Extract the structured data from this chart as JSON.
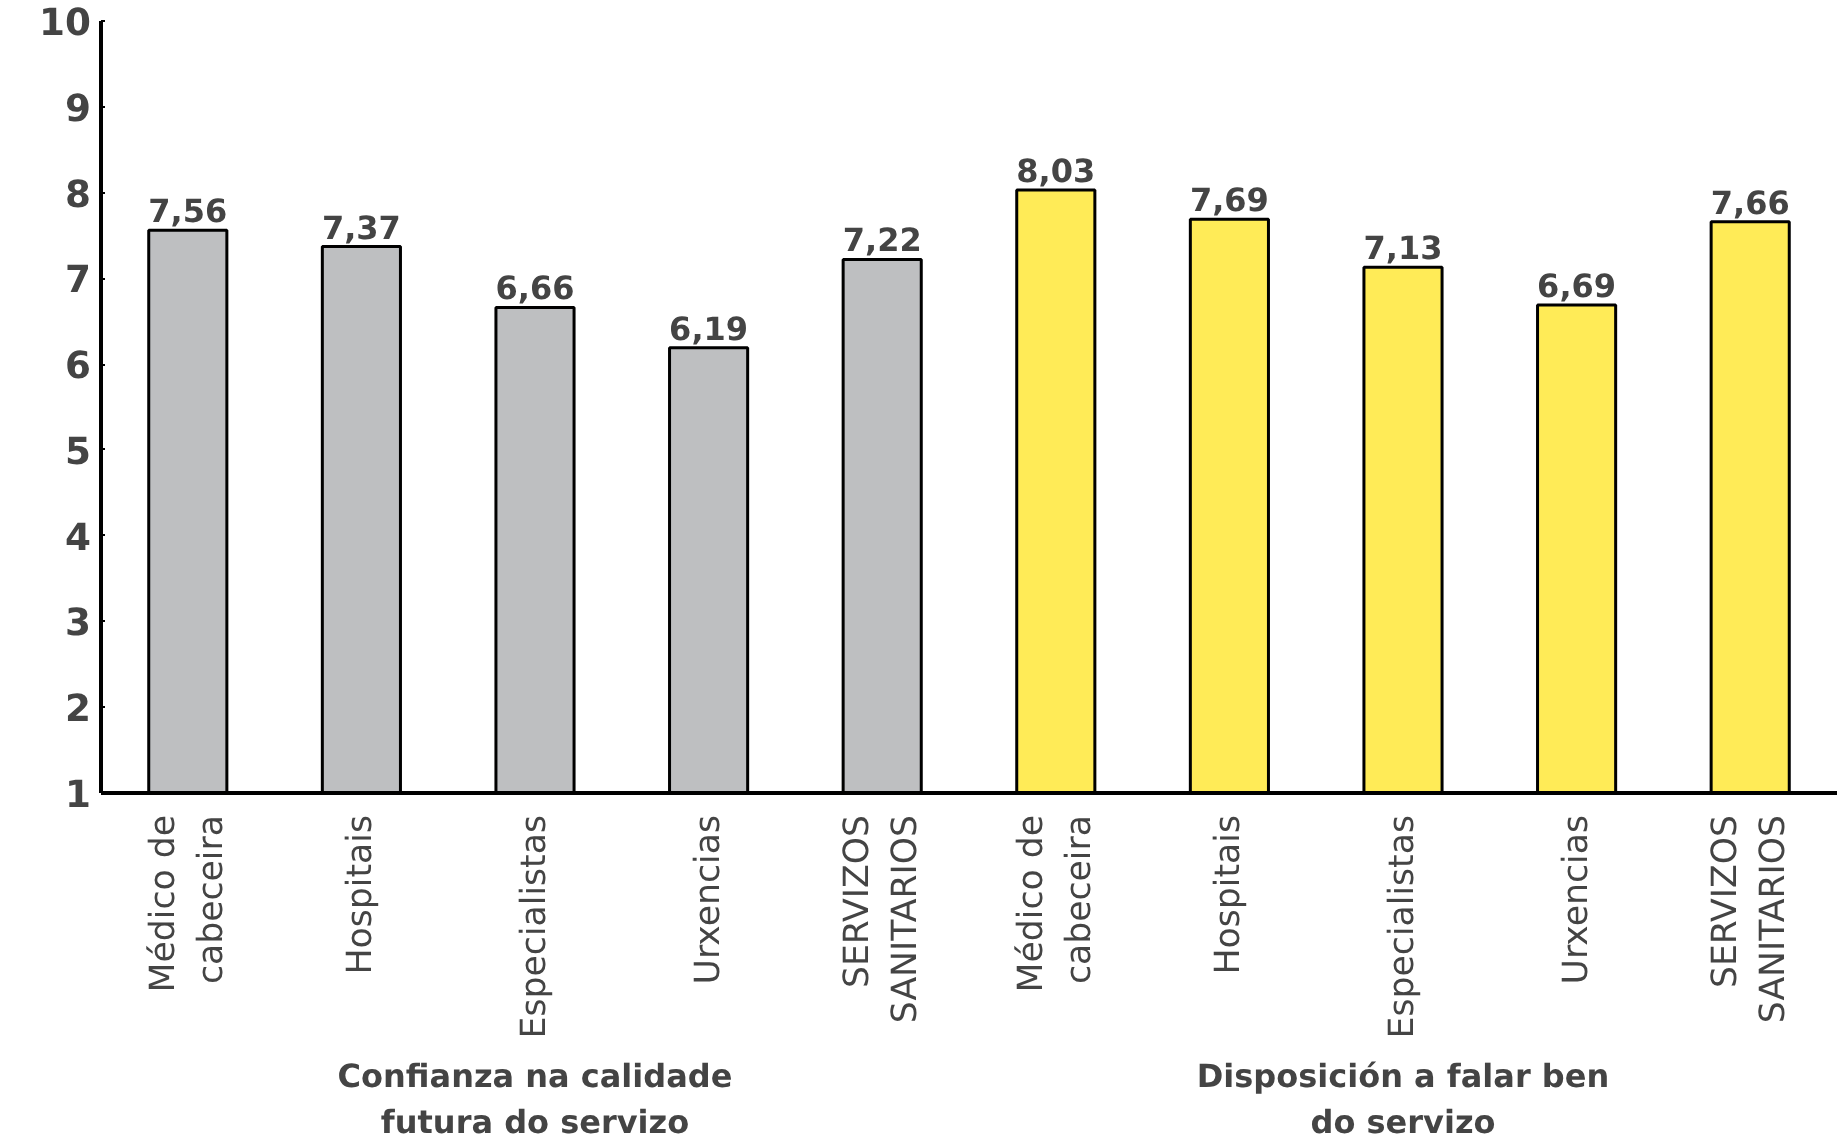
{
  "chart_data": {
    "type": "bar",
    "categories": [
      "Médico de\ncabeceira",
      "Hospitais",
      "Especialistas",
      "Urxencias",
      "SERVIZOS\nSANITARIOS",
      "Médico de\ncabeceira",
      "Hospitais",
      "Especialistas",
      "Urxencias",
      "SERVIZOS\nSANITARIOS"
    ],
    "values": [
      7.56,
      7.37,
      6.66,
      6.19,
      7.22,
      8.03,
      7.69,
      7.13,
      6.69,
      7.66
    ],
    "value_labels": [
      "7,56",
      "7,37",
      "6,66",
      "6,19",
      "7,22",
      "8,03",
      "7,69",
      "7,13",
      "6,69",
      "7,66"
    ],
    "colors": [
      "#bebfc1",
      "#bebfc1",
      "#bebfc1",
      "#bebfc1",
      "#bebfc1",
      "#ffeb57",
      "#ffeb57",
      "#ffeb57",
      "#ffeb57",
      "#ffeb57"
    ],
    "ylim": [
      1,
      10
    ],
    "yticks": [
      1,
      2,
      3,
      4,
      5,
      6,
      7,
      8,
      9,
      10
    ],
    "grid": false,
    "annotations": [
      "Confianza na calidade\nfutura do servizo",
      "Disposición a falar ben\ndo servizo"
    ]
  }
}
